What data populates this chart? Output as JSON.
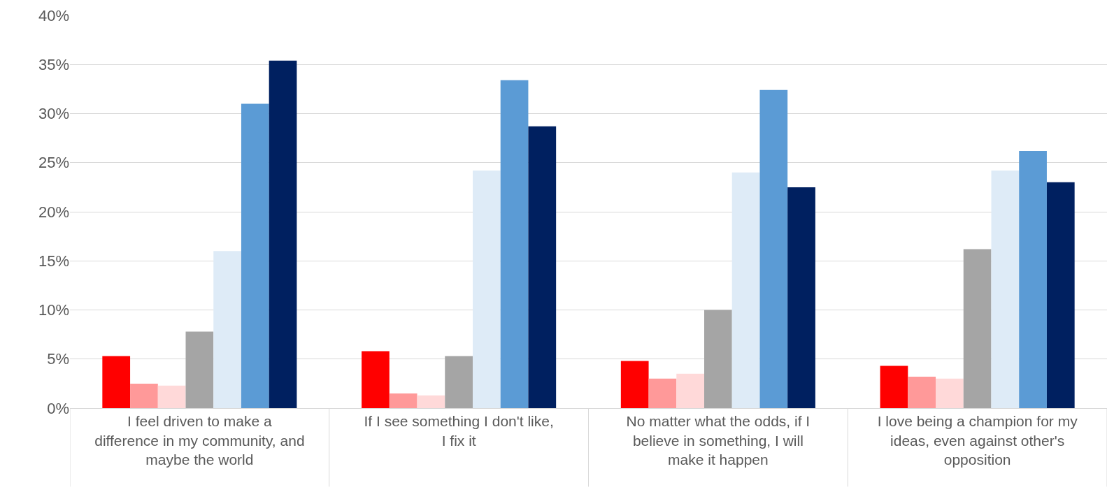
{
  "chart_data": {
    "type": "bar",
    "categories": [
      "I feel driven to make a difference in my community, and maybe the world",
      "If I see something I don't like, I fix it",
      "No matter what the odds, if I believe in something, I will make it happen",
      "I love being a champion for my ideas, even against other's opposition"
    ],
    "series": [
      {
        "color": "#ff0000",
        "values": [
          5.3,
          5.8,
          4.8,
          4.3
        ]
      },
      {
        "color": "#ff9999",
        "values": [
          2.5,
          1.5,
          3.0,
          3.2
        ]
      },
      {
        "color": "#ffd9d9",
        "values": [
          2.3,
          1.3,
          3.5,
          3.0
        ]
      },
      {
        "color": "#a5a5a5",
        "values": [
          7.8,
          5.3,
          10.0,
          16.2
        ]
      },
      {
        "color": "#deebf7",
        "values": [
          16.0,
          24.2,
          24.0,
          24.2
        ]
      },
      {
        "color": "#5b9bd5",
        "values": [
          31.0,
          33.4,
          32.4,
          26.2
        ]
      },
      {
        "color": "#002060",
        "values": [
          35.4,
          28.7,
          22.5,
          23.0
        ]
      }
    ],
    "ylim": [
      0,
      40
    ],
    "yticks": [
      {
        "value": 0,
        "label": "0%"
      },
      {
        "value": 5,
        "label": "5%"
      },
      {
        "value": 10,
        "label": "10%"
      },
      {
        "value": 15,
        "label": "15%"
      },
      {
        "value": 20,
        "label": "20%"
      },
      {
        "value": 25,
        "label": "25%"
      },
      {
        "value": 30,
        "label": "30%"
      },
      {
        "value": 35,
        "label": "35%"
      },
      {
        "value": 40,
        "label": "40%"
      }
    ],
    "grid": "y",
    "legend": false
  }
}
